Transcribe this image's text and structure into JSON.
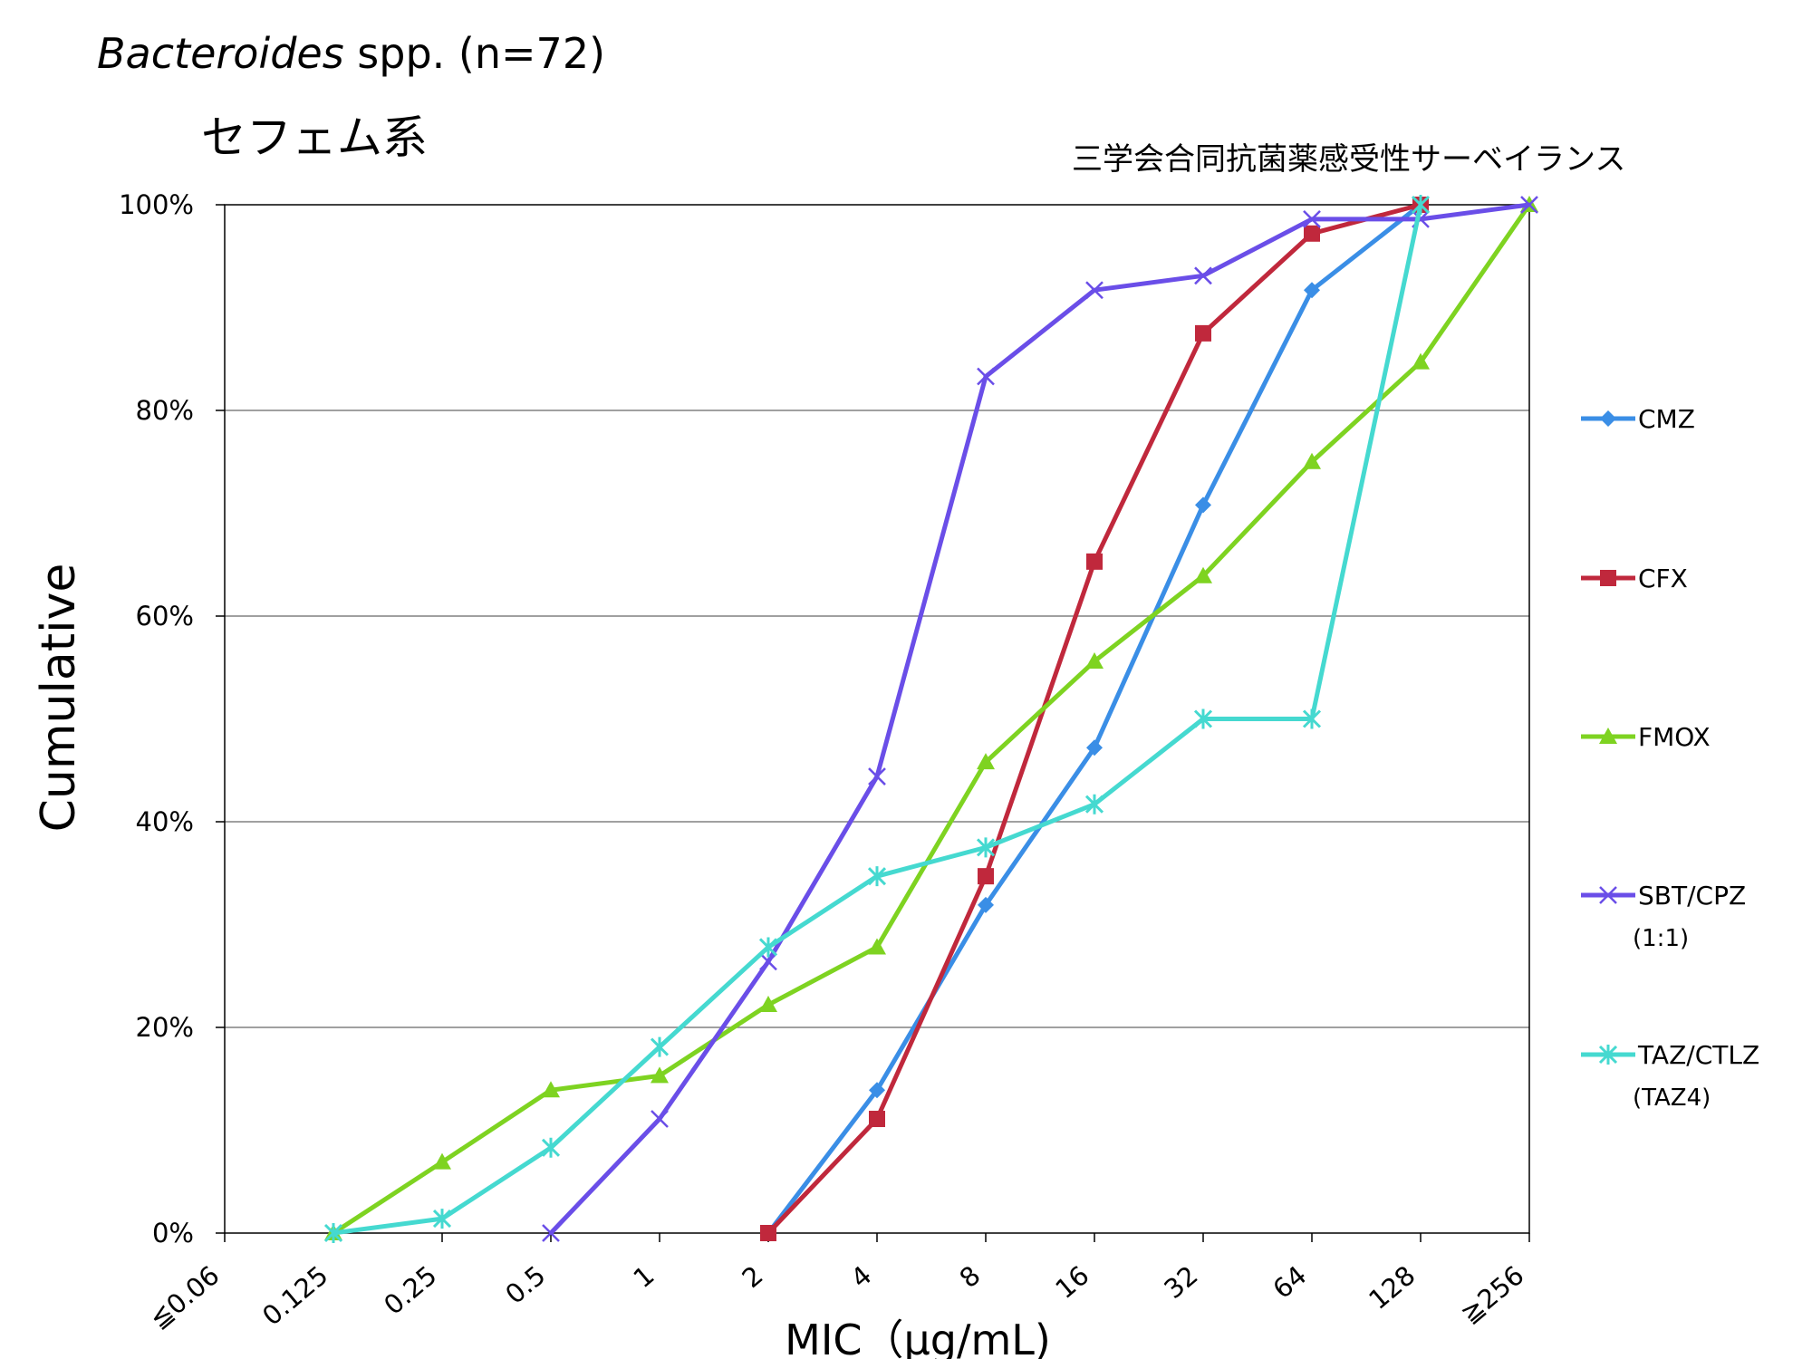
{
  "chart_data": {
    "type": "line",
    "title_italic": "Bacteroides",
    "title_rest": " spp. (n=72)",
    "subtitle": "セフェム系",
    "source": "三学会合同抗菌薬感受性サーベイランス",
    "xlabel": "MIC（μg/mL)",
    "ylabel": "Cumulative",
    "categories": [
      "≦0.06",
      "0.125",
      "0.25",
      "0.5",
      "1",
      "2",
      "4",
      "8",
      "16",
      "32",
      "64",
      "128",
      "≧256"
    ],
    "y_ticks": [
      "0%",
      "20%",
      "40%",
      "60%",
      "80%",
      "100%"
    ],
    "ylim": [
      0,
      100
    ],
    "grid": "horizontal",
    "legend_position": "right",
    "series": [
      {
        "name": "CMZ",
        "sub": "",
        "color": "#3a8ee6",
        "marker": "diamond",
        "values": [
          null,
          null,
          null,
          null,
          null,
          0,
          13.9,
          31.9,
          47.2,
          70.8,
          91.7,
          100,
          null
        ]
      },
      {
        "name": "CFX",
        "sub": "",
        "color": "#c0283c",
        "marker": "square",
        "values": [
          null,
          null,
          null,
          null,
          null,
          0,
          11.1,
          34.7,
          65.3,
          87.5,
          97.2,
          100,
          null
        ]
      },
      {
        "name": "FMOX",
        "sub": "",
        "color": "#7ed321",
        "marker": "triangle",
        "values": [
          null,
          0,
          6.9,
          13.9,
          15.3,
          22.2,
          27.8,
          45.8,
          55.6,
          63.9,
          75.0,
          84.7,
          100
        ]
      },
      {
        "name": "SBT/CPZ",
        "sub": "(1:1)",
        "color": "#6a4ee8",
        "marker": "x",
        "values": [
          null,
          null,
          null,
          0,
          11.1,
          26.4,
          44.4,
          83.3,
          91.7,
          93.1,
          98.6,
          98.6,
          100
        ]
      },
      {
        "name": "TAZ/CTLZ",
        "sub": "(TAZ4)",
        "color": "#45d9d0",
        "marker": "star",
        "values": [
          null,
          0,
          1.4,
          8.3,
          18.1,
          27.8,
          34.7,
          37.5,
          41.7,
          50.0,
          50.0,
          100,
          null
        ]
      }
    ]
  }
}
